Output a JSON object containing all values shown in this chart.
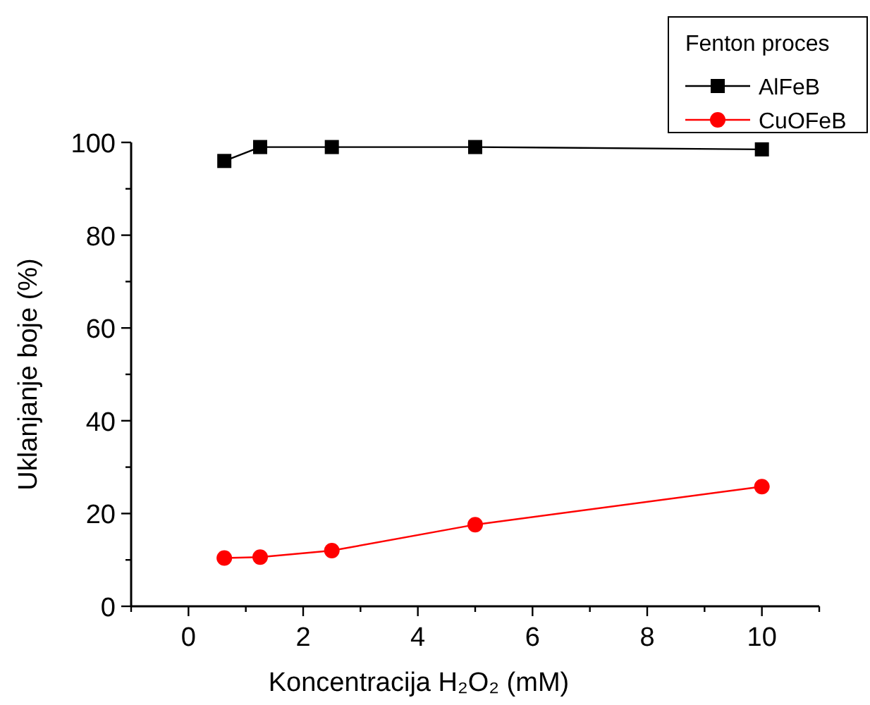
{
  "chart_data": {
    "type": "line",
    "xlabel": "Koncentracija H₂O₂ (mM)",
    "ylabel": "Uklanjanje boje (%)",
    "legend_title": "Fenton proces",
    "legend": "top right",
    "grid": false,
    "x": [
      0.625,
      1.25,
      2.5,
      5,
      10
    ],
    "xlim": [
      -1,
      11
    ],
    "xticks": [
      {
        "value": -1,
        "label": null
      },
      0,
      {
        "value": 1,
        "label": null
      },
      2,
      {
        "value": 3,
        "label": null
      },
      4,
      {
        "value": 5,
        "label": null
      },
      6,
      {
        "value": 7,
        "label": null
      },
      8,
      {
        "value": 9,
        "label": null
      },
      10,
      {
        "value": 11,
        "label": null
      }
    ],
    "ylim": [
      0,
      100
    ],
    "yticks": [
      0,
      {
        "value": 10,
        "label": null
      },
      20,
      {
        "value": 30,
        "label": null
      },
      40,
      {
        "value": 50,
        "label": null
      },
      60,
      {
        "value": 70,
        "label": null
      },
      80,
      {
        "value": 90,
        "label": null
      },
      100
    ],
    "series": [
      {
        "name": "AlFeB",
        "color": "#000000",
        "marker": "square",
        "values": [
          96,
          99,
          99,
          99,
          98.5
        ]
      },
      {
        "name": "CuOFeB",
        "color": "#ff0000",
        "marker": "circle",
        "values": [
          10.4,
          10.6,
          12,
          17.6,
          25.8
        ]
      }
    ]
  }
}
